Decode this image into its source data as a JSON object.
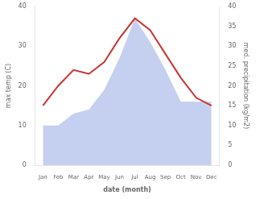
{
  "chart_data": {
    "type": "line",
    "categories": [
      "Jan",
      "Feb",
      "Mar",
      "Apr",
      "May",
      "Jun",
      "Jul",
      "Aug",
      "Sep",
      "Oct",
      "Nov",
      "Dec"
    ],
    "xlabel": "date (month)",
    "ylabel": "max temp (C)",
    "y2label": "med. precipitation (kg/m2)",
    "ylim": [
      0,
      40
    ],
    "yticks": [
      0,
      10,
      20,
      30,
      40
    ],
    "y2lim": [
      0,
      40
    ],
    "y2ticks": [
      0,
      5,
      10,
      15,
      20,
      25,
      30,
      35,
      40
    ],
    "grid": false,
    "series": [
      {
        "type": "area",
        "axis": "y2",
        "color": "#c5d0f0",
        "values": [
          10,
          10,
          13,
          14,
          19,
          27,
          37,
          31,
          24,
          16,
          16,
          16
        ]
      },
      {
        "type": "line",
        "color": "#cc3333",
        "values": [
          15,
          20,
          24,
          23,
          26,
          32,
          37,
          34,
          28,
          22,
          17,
          15
        ]
      }
    ]
  }
}
